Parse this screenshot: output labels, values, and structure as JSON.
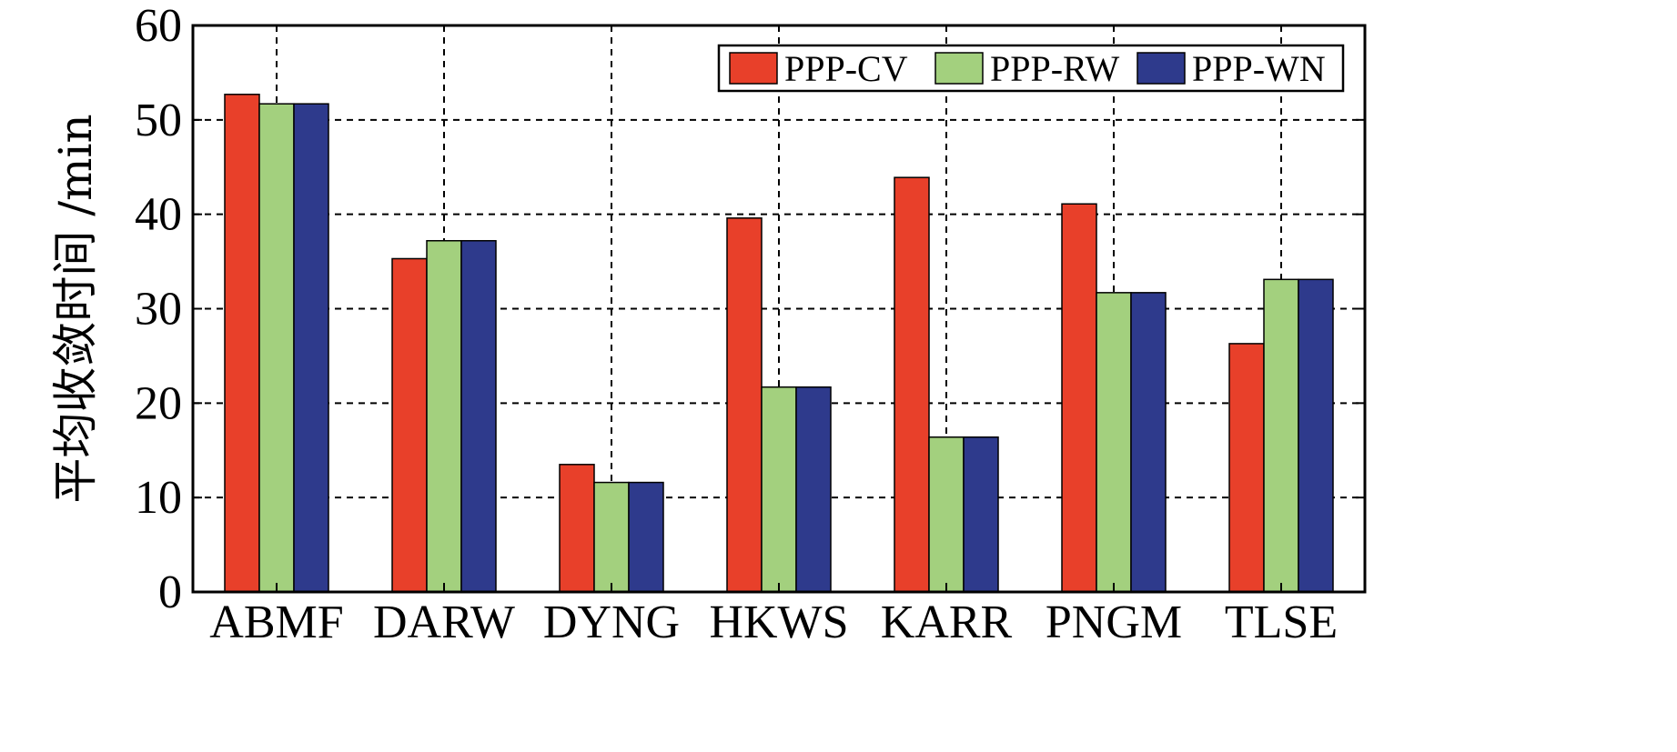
{
  "chart_data": {
    "type": "bar",
    "categories": [
      "ABMF",
      "DARW",
      "DYNG",
      "HKWS",
      "KARR",
      "PNGM",
      "TLSE"
    ],
    "series": [
      {
        "name": "PPP-CV",
        "values": [
          52.7,
          35.3,
          13.5,
          39.6,
          43.9,
          41.1,
          26.3
        ]
      },
      {
        "name": "PPP-RW",
        "values": [
          51.7,
          37.2,
          11.6,
          21.7,
          16.4,
          31.7,
          33.1
        ]
      },
      {
        "name": "PPP-WN",
        "values": [
          51.7,
          37.2,
          11.6,
          21.7,
          16.4,
          31.7,
          33.1
        ]
      }
    ],
    "colors": [
      "#e8402a",
      "#a3d07e",
      "#2e3a8c"
    ],
    "title": "",
    "xlabel": "",
    "ylabel": "平均收敛时间 /min",
    "ylim": [
      0,
      60
    ],
    "yticks": [
      0,
      10,
      20,
      30,
      40,
      50,
      60
    ],
    "grid": true,
    "legend_position": "top-right"
  }
}
